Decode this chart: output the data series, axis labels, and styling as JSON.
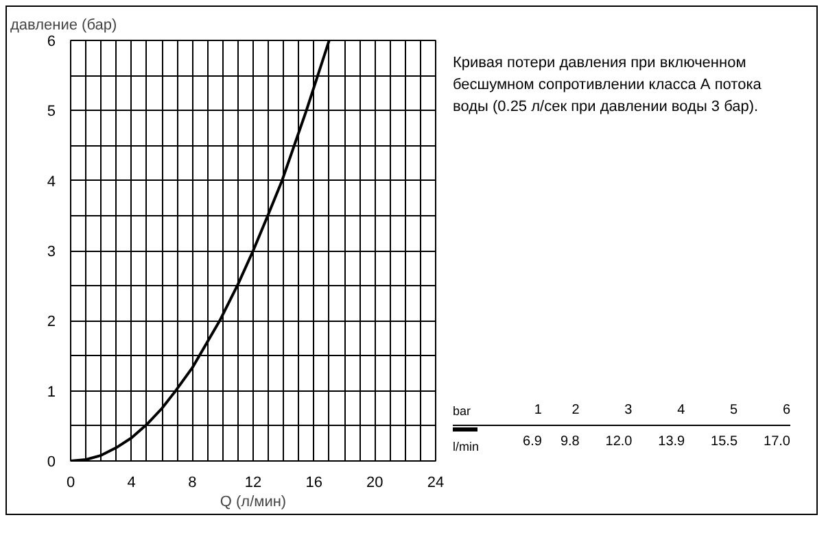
{
  "chart_data": {
    "type": "line",
    "ylabel": "давление (бар)",
    "xlabel": "Q (л/мин)",
    "x": [
      0,
      1,
      2,
      3,
      4,
      5,
      6,
      6.9,
      8,
      9.8,
      11,
      12,
      13,
      13.9,
      15.5,
      17
    ],
    "series": [
      {
        "color": "#000000",
        "values": [
          0,
          0.02,
          0.08,
          0.19,
          0.33,
          0.52,
          0.75,
          1,
          1.33,
          2,
          2.52,
          3,
          3.52,
          4,
          5,
          6
        ]
      }
    ],
    "xlim": [
      0,
      24
    ],
    "ylim": [
      0,
      6
    ],
    "xticks": [
      0,
      {
        "value": 1,
        "label": null
      },
      {
        "value": 2,
        "label": null
      },
      {
        "value": 3,
        "label": null
      },
      4,
      {
        "value": 5,
        "label": null
      },
      {
        "value": 6,
        "label": null
      },
      {
        "value": 7,
        "label": null
      },
      8,
      {
        "value": 9,
        "label": null
      },
      {
        "value": 10,
        "label": null
      },
      {
        "value": 11,
        "label": null
      },
      12,
      {
        "value": 13,
        "label": null
      },
      {
        "value": 14,
        "label": null
      },
      {
        "value": 15,
        "label": null
      },
      16,
      {
        "value": 17,
        "label": null
      },
      {
        "value": 18,
        "label": null
      },
      {
        "value": 19,
        "label": null
      },
      20,
      {
        "value": 21,
        "label": null
      },
      {
        "value": 22,
        "label": null
      },
      {
        "value": 23,
        "label": null
      },
      24
    ],
    "yticks": [
      0,
      {
        "value": 0.5,
        "label": null
      },
      1,
      {
        "value": 1.5,
        "label": null
      },
      2,
      {
        "value": 2.5,
        "label": null
      },
      3,
      {
        "value": 3.5,
        "label": null
      },
      4,
      {
        "value": 4.5,
        "label": null
      },
      5,
      {
        "value": 5.5,
        "label": null
      },
      6
    ],
    "grid": true,
    "line_style": "solid",
    "marker": "none",
    "annotations": [
      "Кривая потери давления при включенном бесшумном сопротивлении класса А потока воды (0.25 л/сек при давлении воды 3 бар).",
      "bar",
      "1",
      "2",
      "3",
      "4",
      "5",
      "6",
      "l/min",
      "6.9",
      "9.8",
      "12.0",
      "13.9",
      "15.5",
      "17.0"
    ]
  }
}
